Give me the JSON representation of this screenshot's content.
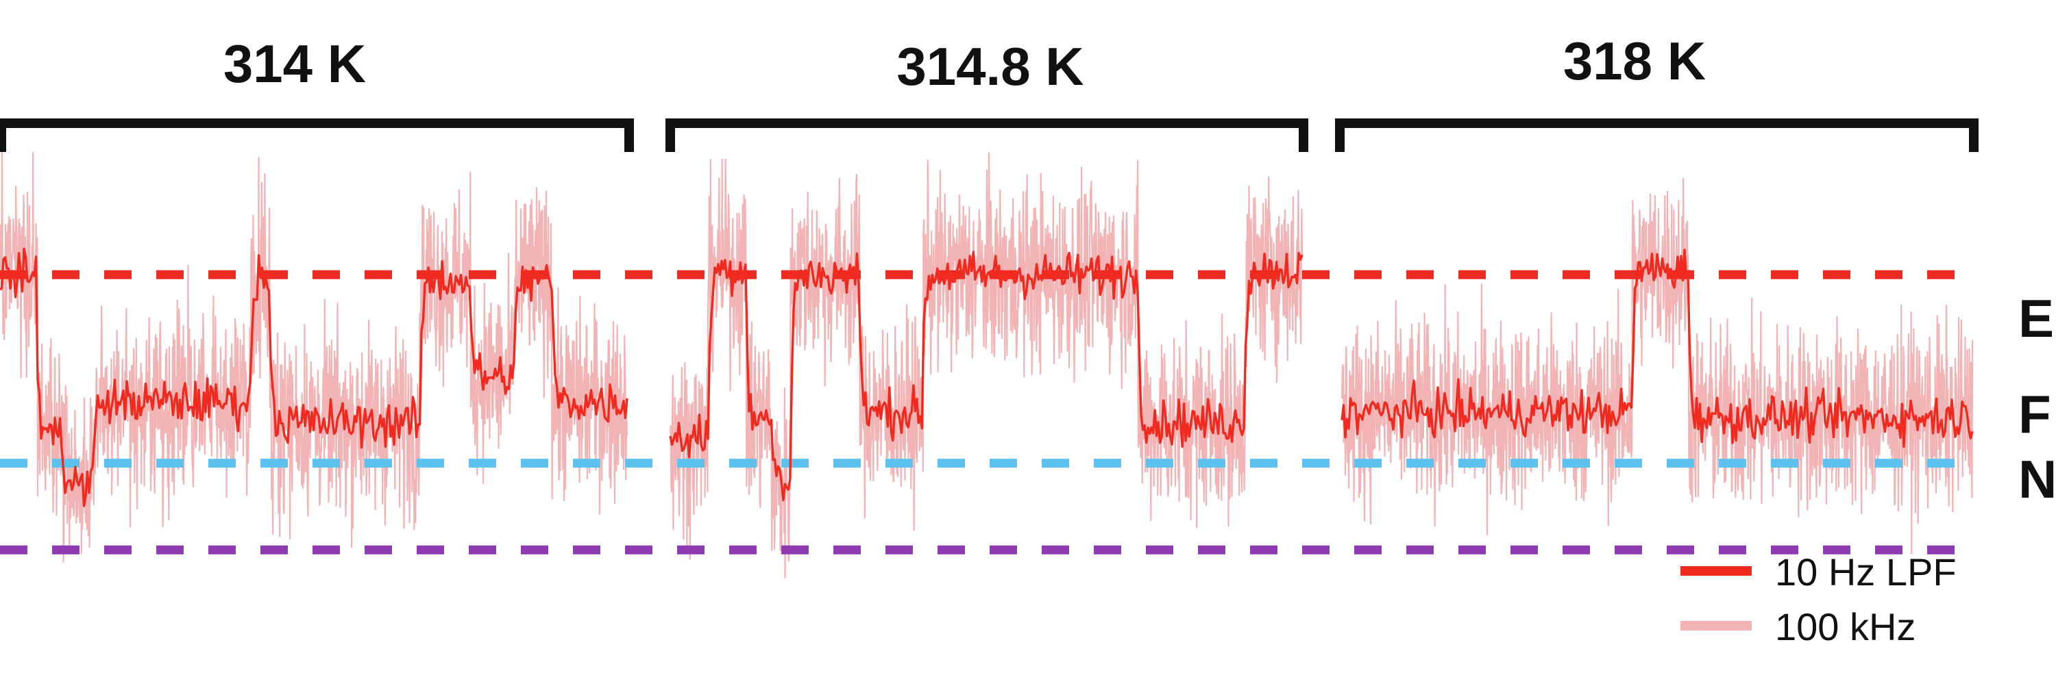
{
  "chart_data": {
    "type": "line",
    "title": "",
    "xlabel": "",
    "ylabel": "",
    "ylim": [
      -1.5,
      3.0
    ],
    "grid": false,
    "legend_placement": "bottom-right",
    "panels": [
      {
        "title": "314 K",
        "x_range": [
          0,
          100
        ],
        "dwell_segments": [
          {
            "x": [
              0,
              6
            ],
            "level": 1.85
          },
          {
            "x": [
              6,
              10
            ],
            "level": 0.3
          },
          {
            "x": [
              10,
              15
            ],
            "level": -0.2
          },
          {
            "x": [
              15,
              40
            ],
            "level": 0.6
          },
          {
            "x": [
              40,
              43
            ],
            "level": 1.85
          },
          {
            "x": [
              43,
              67
            ],
            "level": 0.4
          },
          {
            "x": [
              67,
              75
            ],
            "level": 1.8
          },
          {
            "x": [
              75,
              82
            ],
            "level": 0.85
          },
          {
            "x": [
              82,
              88
            ],
            "level": 1.8
          },
          {
            "x": [
              88,
              100
            ],
            "level": 0.6
          }
        ]
      },
      {
        "title": "314.8 K",
        "x_range": [
          0,
          100
        ],
        "dwell_segments": [
          {
            "x": [
              0,
              6
            ],
            "level": 0.25
          },
          {
            "x": [
              6,
              12
            ],
            "level": 1.9
          },
          {
            "x": [
              12,
              16
            ],
            "level": 0.45
          },
          {
            "x": [
              16,
              19
            ],
            "level": -0.2
          },
          {
            "x": [
              19,
              30
            ],
            "level": 1.85
          },
          {
            "x": [
              30,
              40
            ],
            "level": 0.5
          },
          {
            "x": [
              40,
              74
            ],
            "level": 1.85
          },
          {
            "x": [
              74,
              91
            ],
            "level": 0.4
          },
          {
            "x": [
              91,
              100
            ],
            "level": 1.9
          }
        ]
      },
      {
        "title": "318 K",
        "x_range": [
          0,
          100
        ],
        "dwell_segments": [
          {
            "x": [
              0,
              46
            ],
            "level": 0.5
          },
          {
            "x": [
              46,
              55
            ],
            "level": 1.9
          },
          {
            "x": [
              55,
              100
            ],
            "level": 0.45
          }
        ]
      }
    ],
    "reference_levels": [
      {
        "label": "E",
        "value": 1.85,
        "color": "#ee2b23"
      },
      {
        "label": "F",
        "value": 0.0,
        "color": "#5ec2ef"
      },
      {
        "label": "N",
        "value": -0.85,
        "color": "#8e3ab0"
      }
    ],
    "series": [
      {
        "name": "10 Hz LPF",
        "color": "#f02a1e"
      },
      {
        "name": "100 kHz",
        "color": "#f2b3b5"
      }
    ]
  }
}
